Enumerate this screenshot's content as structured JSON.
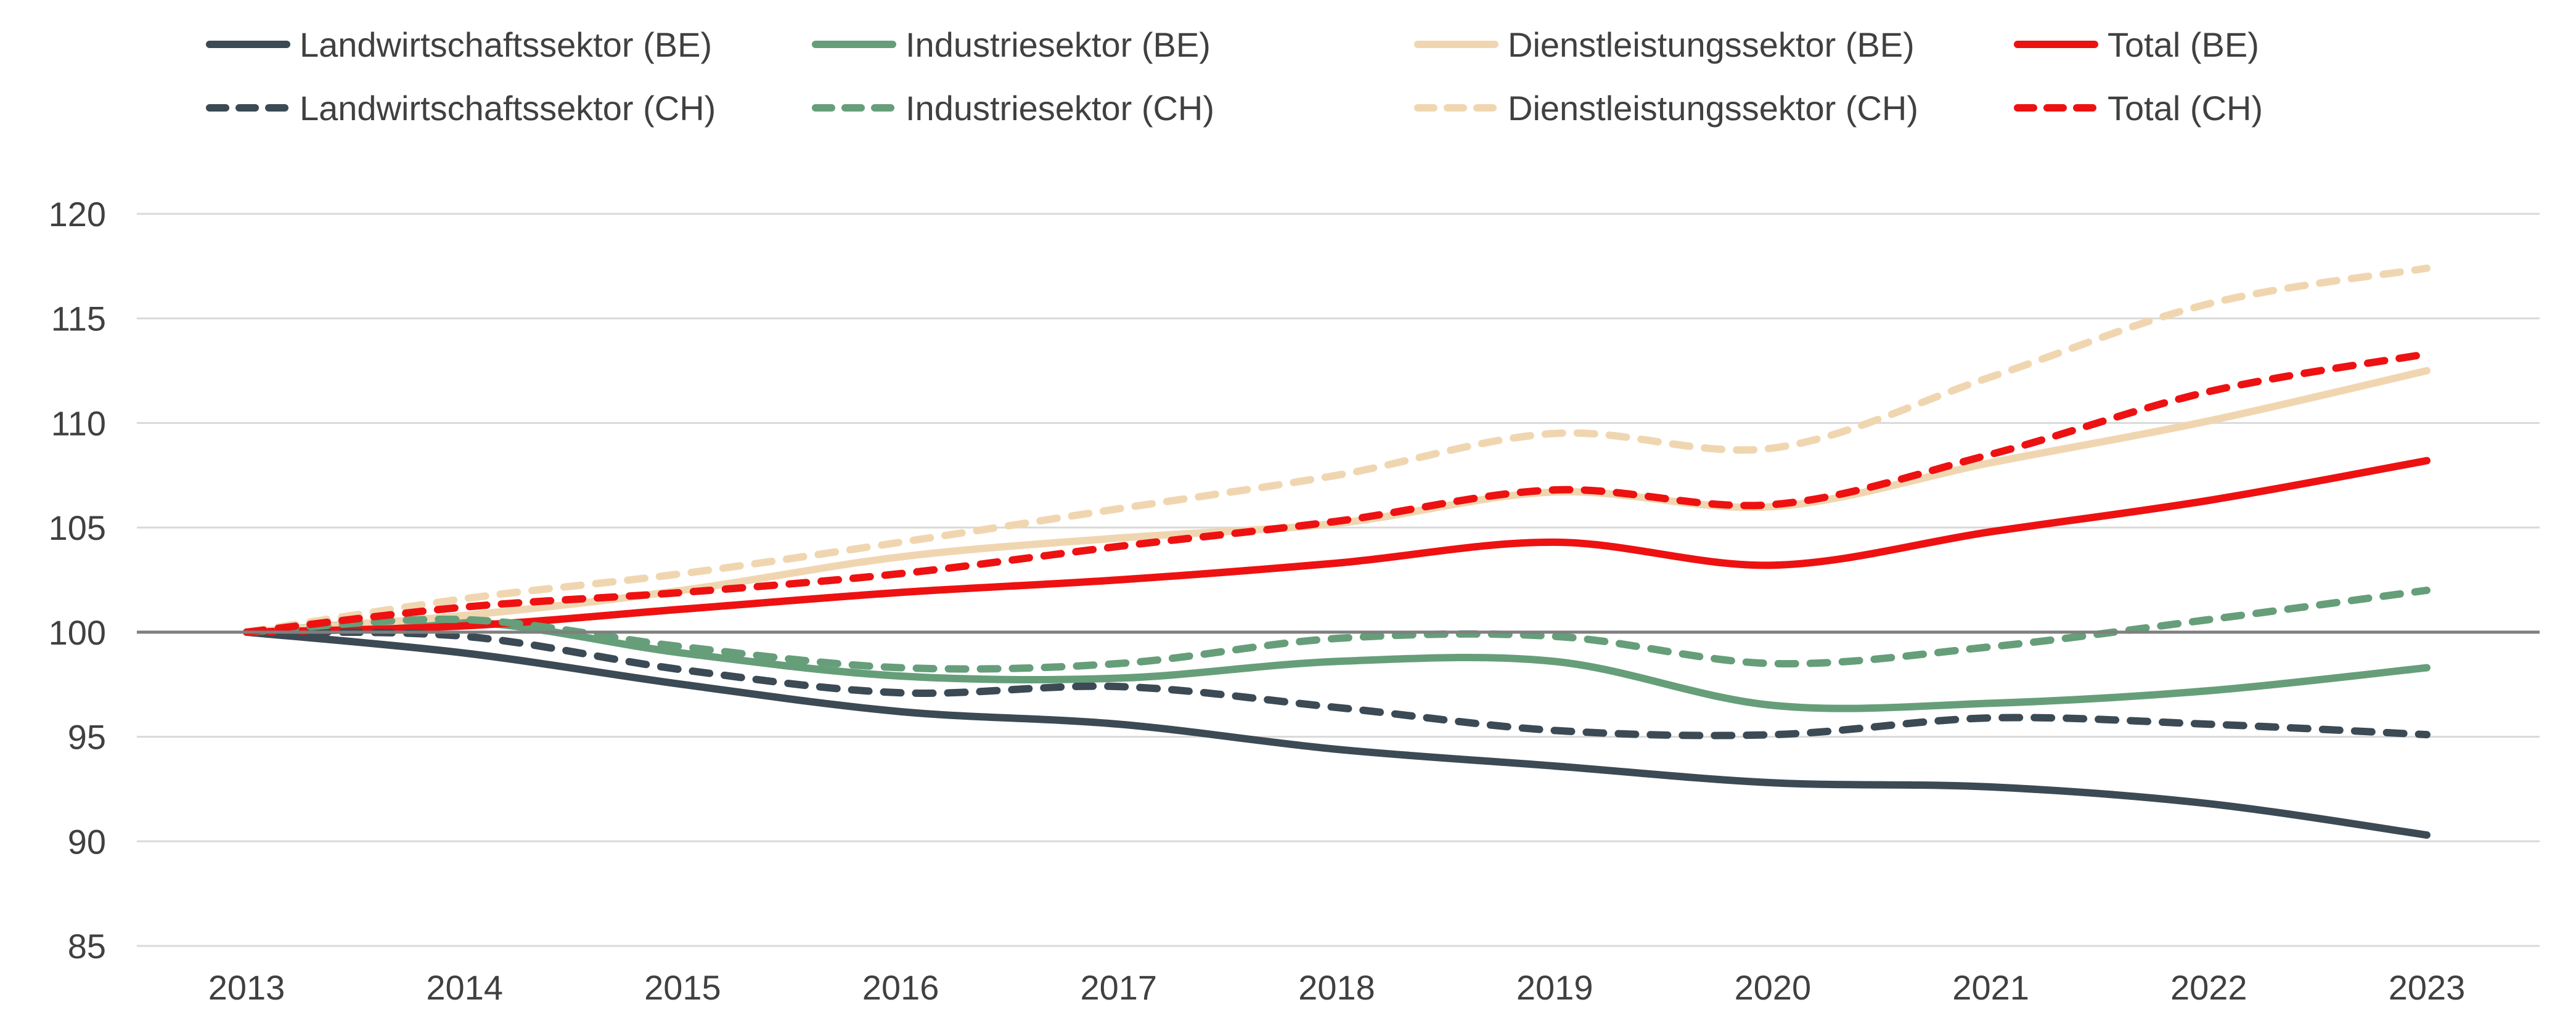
{
  "chart_data": {
    "type": "line",
    "title": "",
    "xlabel": "",
    "ylabel": "",
    "x": [
      2013,
      2014,
      2015,
      2016,
      2017,
      2018,
      2019,
      2020,
      2021,
      2022,
      2023
    ],
    "ylim": [
      85,
      120
    ],
    "yticks": [
      85,
      90,
      95,
      100,
      105,
      110,
      115,
      120
    ],
    "grid": true,
    "baseline": 100,
    "legend_position": "top",
    "series": [
      {
        "name": "Landwirtschaftssektor (BE)",
        "color": "#3b4a54",
        "style": "solid",
        "values": [
          100,
          99.0,
          97.5,
          96.2,
          95.6,
          94.4,
          93.6,
          92.8,
          92.6,
          91.8,
          90.3
        ]
      },
      {
        "name": "Landwirtschaftssektor (CH)",
        "color": "#3b4a54",
        "style": "dashed",
        "values": [
          100,
          99.8,
          98.2,
          97.1,
          97.4,
          96.4,
          95.3,
          95.1,
          95.9,
          95.6,
          95.1
        ]
      },
      {
        "name": "Industriesektor (BE)",
        "color": "#669e7a",
        "style": "solid",
        "values": [
          100,
          100.5,
          99.0,
          97.9,
          97.8,
          98.6,
          98.6,
          96.5,
          96.6,
          97.2,
          98.3
        ]
      },
      {
        "name": "Industriesektor (CH)",
        "color": "#669e7a",
        "style": "dashed",
        "values": [
          100,
          100.6,
          99.3,
          98.3,
          98.5,
          99.7,
          99.8,
          98.5,
          99.3,
          100.6,
          102.0
        ]
      },
      {
        "name": "Dienstleistungssektor (BE)",
        "color": "#f0d6b0",
        "style": "solid",
        "values": [
          100,
          100.8,
          102.0,
          103.6,
          104.5,
          105.2,
          106.7,
          106.0,
          108.1,
          110.1,
          112.5
        ]
      },
      {
        "name": "Dienstleistungssektor (CH)",
        "color": "#f0d6b0",
        "style": "dashed",
        "values": [
          100,
          101.6,
          102.8,
          104.3,
          105.9,
          107.5,
          109.5,
          108.8,
          112.2,
          115.7,
          117.4
        ]
      },
      {
        "name": "Total (BE)",
        "color": "#ee1111",
        "style": "solid",
        "values": [
          100,
          100.3,
          101.1,
          101.9,
          102.5,
          103.3,
          104.3,
          103.2,
          104.8,
          106.3,
          108.2
        ]
      },
      {
        "name": "Total (CH)",
        "color": "#ee1111",
        "style": "dashed",
        "values": [
          100,
          101.2,
          101.9,
          102.8,
          104.1,
          105.3,
          106.8,
          106.1,
          108.5,
          111.5,
          113.3
        ]
      }
    ]
  }
}
